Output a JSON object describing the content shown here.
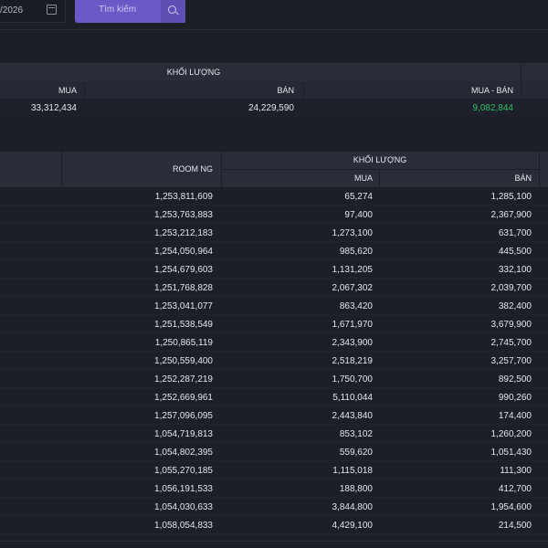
{
  "toolbar": {
    "date_value": "/2026",
    "search_label": "Tìm kiếm"
  },
  "summary": {
    "group_header": "KHỐI LƯỢNG",
    "cols": [
      "MUA",
      "BÁN",
      "MUA - BÁN"
    ],
    "values": [
      "33,312,434",
      "24,229,590",
      "9,082,844"
    ],
    "net_color": "#2ebd6b"
  },
  "detail": {
    "room_header": "ROOM NG",
    "group_header": "KHỐI LƯỢNG",
    "cols": [
      "MUA",
      "BÁN"
    ],
    "rows": [
      [
        "1,253,811,609",
        "65,274",
        "1,285,100"
      ],
      [
        "1,253,763,883",
        "97,400",
        "2,367,900"
      ],
      [
        "1,253,212,183",
        "1,273,100",
        "631,700"
      ],
      [
        "1,254,050,964",
        "985,620",
        "445,500"
      ],
      [
        "1,254,679,603",
        "1,131,205",
        "332,100"
      ],
      [
        "1,251,768,828",
        "2,067,302",
        "2,039,700"
      ],
      [
        "1,253,041,077",
        "863,420",
        "382,400"
      ],
      [
        "1,251,538,549",
        "1,671,970",
        "3,679,900"
      ],
      [
        "1,250,865,119",
        "2,343,900",
        "2,745,700"
      ],
      [
        "1,250,559,400",
        "2,518,219",
        "3,257,700"
      ],
      [
        "1,252,287,219",
        "1,750,700",
        "892,500"
      ],
      [
        "1,252,669,961",
        "5,110,044",
        "990,260"
      ],
      [
        "1,257,096,095",
        "2,443,840",
        "174,400"
      ],
      [
        "1,054,719,813",
        "853,102",
        "1,260,200"
      ],
      [
        "1,054,802,395",
        "559,620",
        "1,051,430"
      ],
      [
        "1,055,270,185",
        "1,115,018",
        "111,300"
      ],
      [
        "1,056,191,533",
        "188,800",
        "412,700"
      ],
      [
        "1,054,030,633",
        "3,844,800",
        "1,954,600"
      ],
      [
        "1,058,054,833",
        "4,429,100",
        "214,500"
      ]
    ]
  }
}
